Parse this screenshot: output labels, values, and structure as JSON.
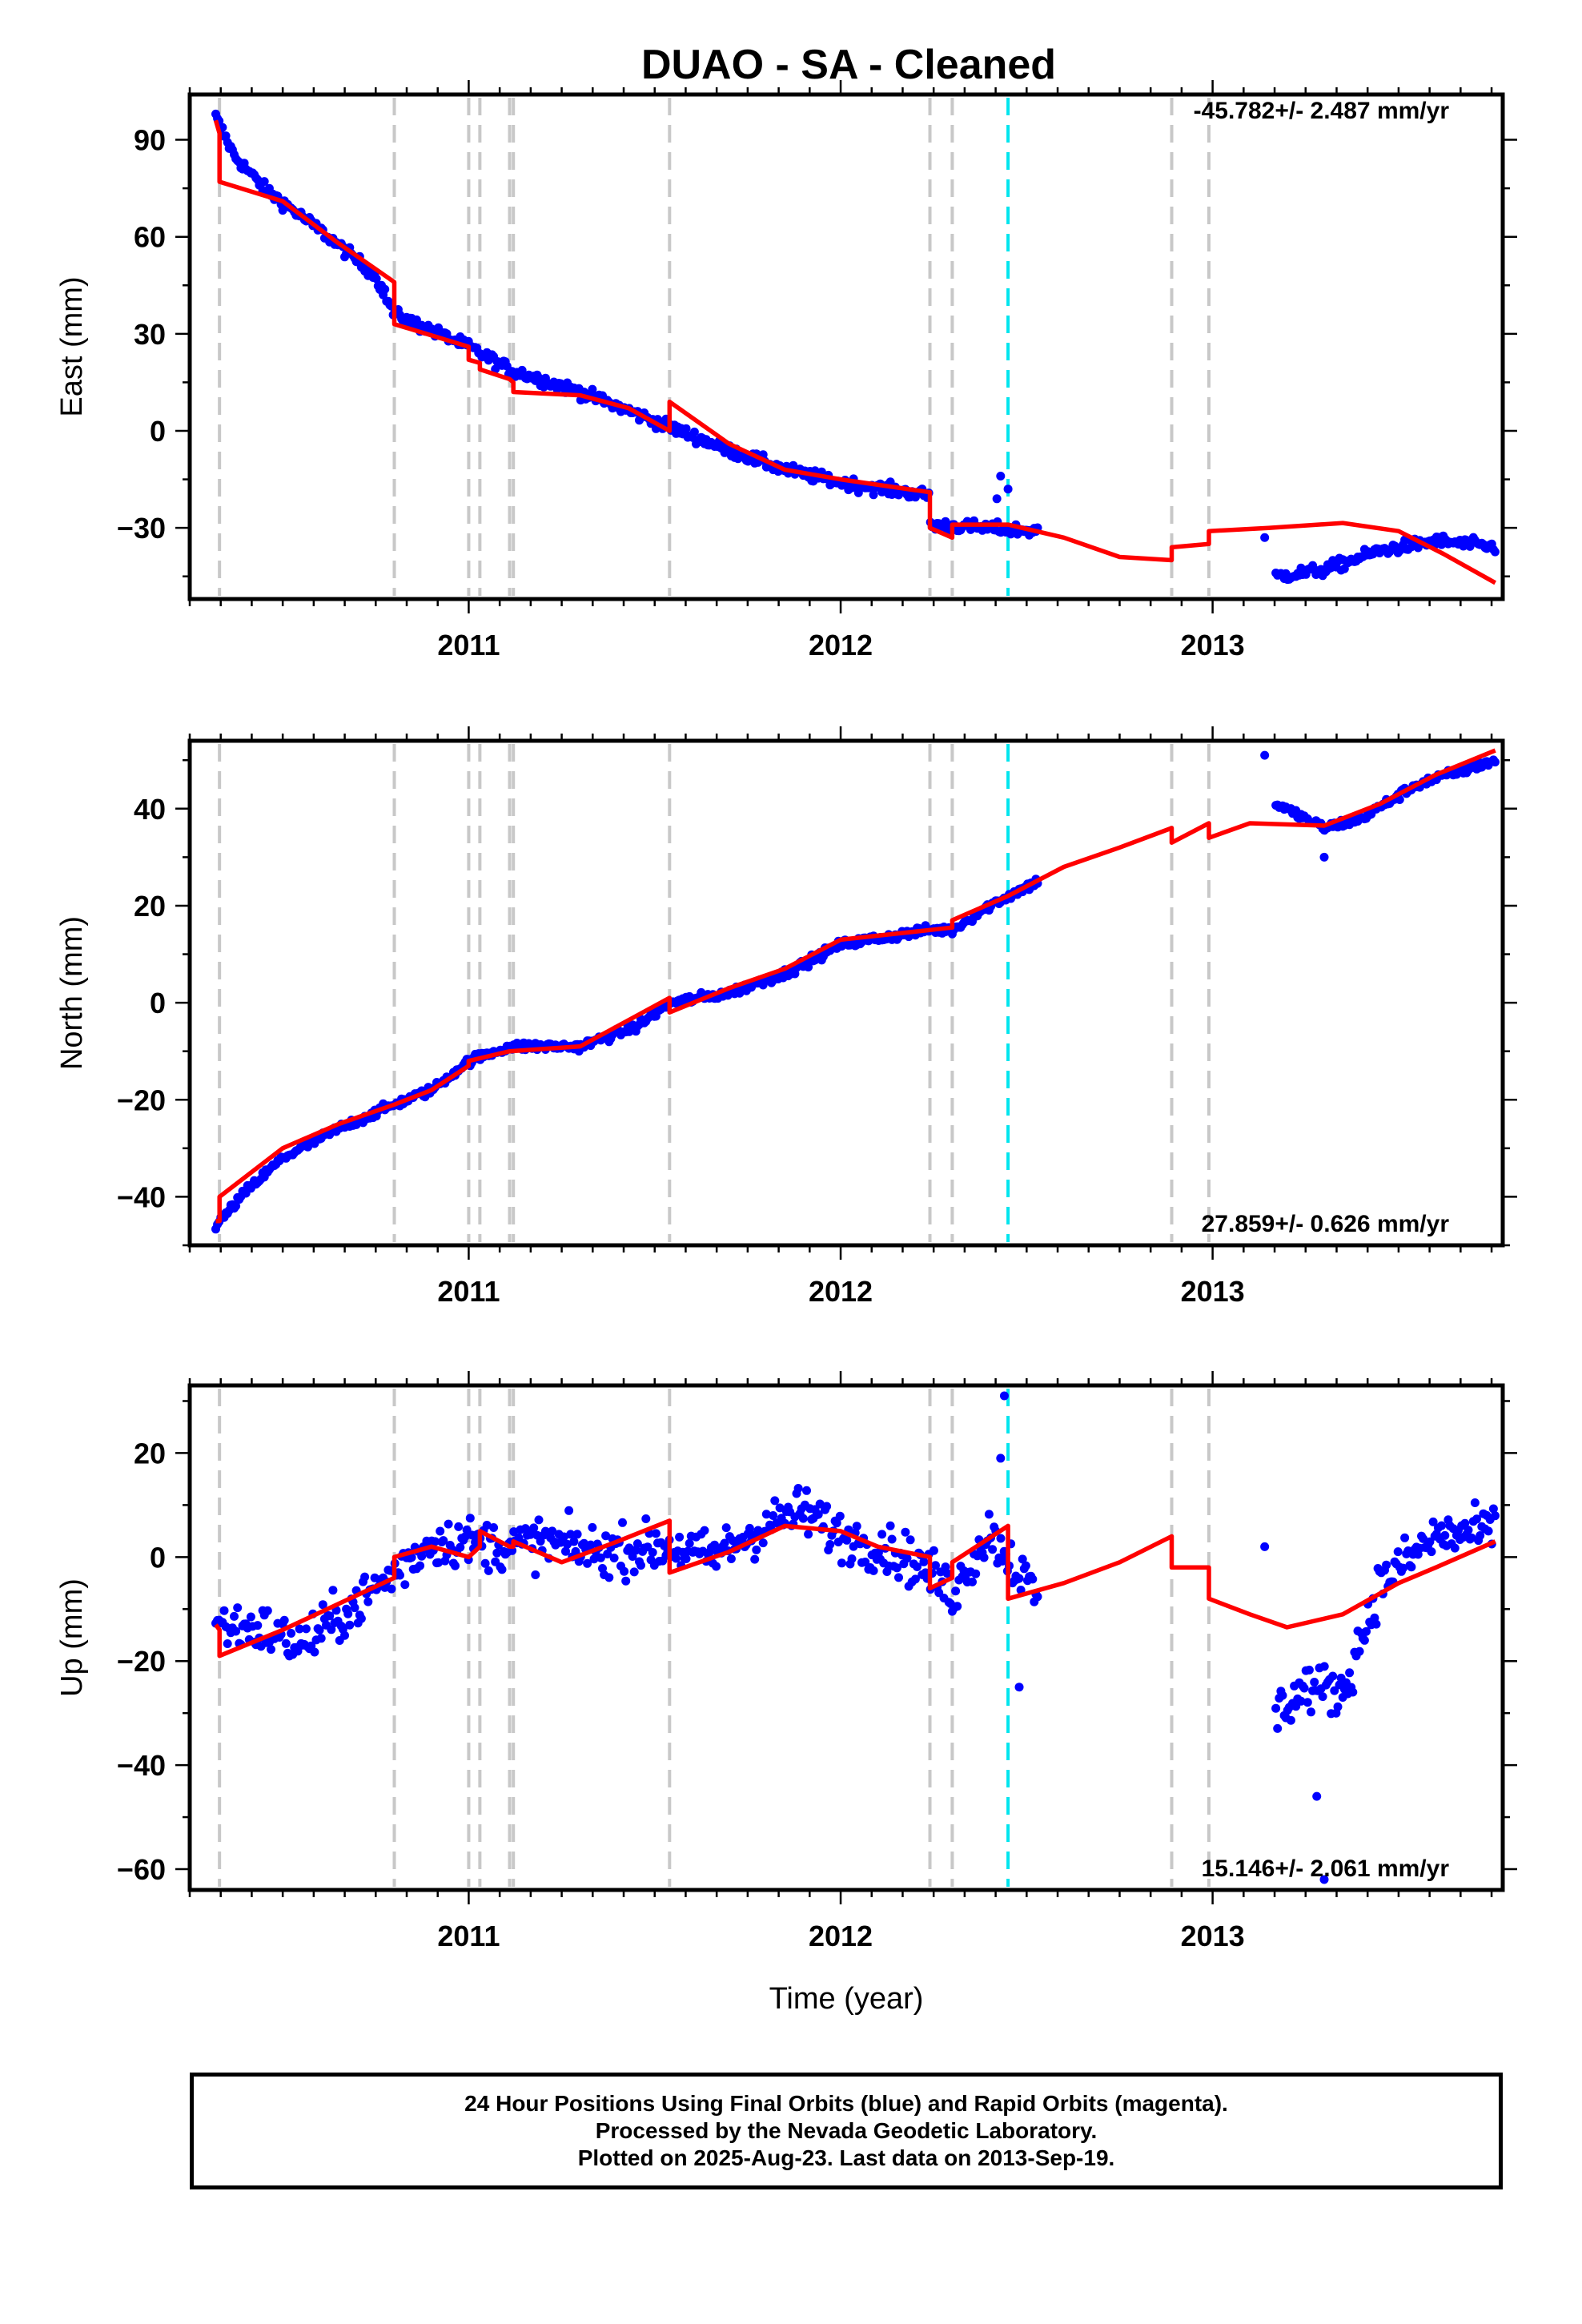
{
  "title": "DUAO  - SA - Cleaned",
  "footer": {
    "line1": "24 Hour Positions Using Final Orbits (blue) and Rapid Orbits (magenta).",
    "line2": "Processed by the Nevada Geodetic Laboratory.",
    "line3": "Plotted on 2025-Aug-23. Last data on 2013-Sep-19."
  },
  "colors": {
    "data": "#0000ff",
    "model": "#ff0000",
    "offset": "#c8c8c8",
    "equipment": "#00e5ee"
  },
  "chart_data": [
    {
      "type": "scatter",
      "ylabel": "East (mm)",
      "xlabel": "",
      "rate_text": "-45.782+/- 2.487 mm/yr",
      "xlim": [
        2010.25,
        2013.78
      ],
      "ylim": [
        -52,
        104
      ],
      "xticks": [
        2011,
        2012,
        2013
      ],
      "xtick_labels": [
        "2011",
        "2012",
        "2013"
      ],
      "yticks": [
        -30,
        0,
        30,
        60,
        90
      ],
      "ytick_labels": [
        "−30",
        "0",
        "30",
        "60",
        "90"
      ],
      "offsets": [
        2010.33,
        2010.8,
        2011.0,
        2011.03,
        2011.11,
        2011.12,
        2011.54,
        2012.24,
        2012.3,
        2012.89,
        2012.99
      ],
      "equipment_change": [
        2012.45
      ],
      "data_ranges": [
        [
          2010.32,
          2012.3
        ],
        [
          2012.3,
          2012.53
        ],
        [
          2013.17,
          2013.76
        ]
      ],
      "scatter_noise": 1.8,
      "outliers": [
        [
          2012.43,
          -14
        ],
        [
          2012.42,
          -21
        ],
        [
          2012.45,
          -18
        ],
        [
          2013.14,
          -33
        ]
      ],
      "model": [
        [
          2010.32,
          96
        ],
        [
          2010.33,
          92
        ],
        [
          2010.33,
          77
        ],
        [
          2010.5,
          71
        ],
        [
          2010.65,
          58
        ],
        [
          2010.8,
          46
        ],
        [
          2010.8,
          33
        ],
        [
          2011.0,
          26
        ],
        [
          2011.0,
          22
        ],
        [
          2011.03,
          21
        ],
        [
          2011.03,
          19
        ],
        [
          2011.11,
          16
        ],
        [
          2011.12,
          15
        ],
        [
          2011.12,
          12
        ],
        [
          2011.3,
          11
        ],
        [
          2011.43,
          7
        ],
        [
          2011.54,
          0
        ],
        [
          2011.54,
          9
        ],
        [
          2011.7,
          -4
        ],
        [
          2011.85,
          -12
        ],
        [
          2012.0,
          -15
        ],
        [
          2012.24,
          -19
        ],
        [
          2012.24,
          -30
        ],
        [
          2012.3,
          -33
        ],
        [
          2012.3,
          -29
        ],
        [
          2012.45,
          -29
        ],
        [
          2012.6,
          -33
        ],
        [
          2012.75,
          -39
        ],
        [
          2012.89,
          -40
        ],
        [
          2012.89,
          -36
        ],
        [
          2012.99,
          -35
        ],
        [
          2012.99,
          -31
        ],
        [
          2013.15,
          -30
        ],
        [
          2013.35,
          -28.5
        ],
        [
          2013.5,
          -31
        ],
        [
          2013.62,
          -38
        ],
        [
          2013.76,
          -47
        ]
      ],
      "data_trend": [
        [
          2010.32,
          97
        ],
        [
          2010.37,
          85
        ],
        [
          2010.45,
          75
        ],
        [
          2010.6,
          62
        ],
        [
          2010.75,
          48
        ],
        [
          2010.8,
          36
        ],
        [
          2011.0,
          26
        ],
        [
          2011.11,
          19
        ],
        [
          2011.3,
          12
        ],
        [
          2011.5,
          3
        ],
        [
          2011.7,
          -6
        ],
        [
          2011.85,
          -12
        ],
        [
          2012.0,
          -16
        ],
        [
          2012.24,
          -20
        ],
        [
          2012.24,
          -29
        ],
        [
          2012.53,
          -31
        ],
        [
          2013.17,
          -45
        ],
        [
          2013.3,
          -43
        ],
        [
          2013.45,
          -37
        ],
        [
          2013.6,
          -34
        ],
        [
          2013.76,
          -36
        ]
      ]
    },
    {
      "type": "scatter",
      "ylabel": "North (mm)",
      "xlabel": "",
      "rate_text": "27.859+/- 0.626 mm/yr",
      "xlim": [
        2010.25,
        2013.78
      ],
      "ylim": [
        -50,
        54
      ],
      "xticks": [
        2011,
        2012,
        2013
      ],
      "xtick_labels": [
        "2011",
        "2012",
        "2013"
      ],
      "yticks": [
        -40,
        -20,
        0,
        20,
        40
      ],
      "ytick_labels": [
        "−40",
        "−20",
        "0",
        "20",
        "40"
      ],
      "offsets": [
        2010.33,
        2010.8,
        2011.0,
        2011.03,
        2011.11,
        2011.12,
        2011.54,
        2012.24,
        2012.3,
        2012.89,
        2012.99
      ],
      "equipment_change": [
        2012.45
      ],
      "data_ranges": [
        [
          2010.32,
          2012.3
        ],
        [
          2012.3,
          2012.53
        ],
        [
          2013.17,
          2013.76
        ]
      ],
      "scatter_noise": 0.9,
      "outliers": [
        [
          2013.14,
          51
        ],
        [
          2013.3,
          30
        ]
      ],
      "model": [
        [
          2010.32,
          -45
        ],
        [
          2010.33,
          -45
        ],
        [
          2010.33,
          -40
        ],
        [
          2010.5,
          -30
        ],
        [
          2010.65,
          -25
        ],
        [
          2010.8,
          -21
        ],
        [
          2010.9,
          -18
        ],
        [
          2011.0,
          -13
        ],
        [
          2011.0,
          -12
        ],
        [
          2011.11,
          -10
        ],
        [
          2011.3,
          -9
        ],
        [
          2011.54,
          1
        ],
        [
          2011.54,
          -2
        ],
        [
          2011.7,
          3
        ],
        [
          2011.85,
          7
        ],
        [
          2012.0,
          13
        ],
        [
          2012.24,
          15
        ],
        [
          2012.3,
          15.5
        ],
        [
          2012.3,
          17
        ],
        [
          2012.45,
          22
        ],
        [
          2012.6,
          28
        ],
        [
          2012.75,
          32
        ],
        [
          2012.89,
          36
        ],
        [
          2012.89,
          33
        ],
        [
          2012.99,
          37
        ],
        [
          2012.99,
          34
        ],
        [
          2013.1,
          37
        ],
        [
          2013.3,
          36.5
        ],
        [
          2013.45,
          41
        ],
        [
          2013.6,
          47
        ],
        [
          2013.76,
          52
        ]
      ],
      "data_trend": [
        [
          2010.32,
          -46
        ],
        [
          2010.4,
          -39
        ],
        [
          2010.5,
          -32
        ],
        [
          2010.65,
          -26
        ],
        [
          2010.8,
          -21
        ],
        [
          2010.9,
          -18
        ],
        [
          2011.0,
          -12
        ],
        [
          2011.11,
          -9
        ],
        [
          2011.3,
          -9
        ],
        [
          2011.45,
          -5
        ],
        [
          2011.54,
          0
        ],
        [
          2011.7,
          2
        ],
        [
          2011.85,
          6
        ],
        [
          2012.0,
          12
        ],
        [
          2012.24,
          15
        ],
        [
          2012.3,
          15
        ],
        [
          2012.4,
          20
        ],
        [
          2012.53,
          25
        ],
        [
          2013.17,
          41
        ],
        [
          2013.3,
          36
        ],
        [
          2013.4,
          38
        ],
        [
          2013.55,
          45
        ],
        [
          2013.76,
          50
        ]
      ]
    },
    {
      "type": "scatter",
      "ylabel": "Up (mm)",
      "xlabel": "Time (year)",
      "rate_text": "15.146+/- 2.061 mm/yr",
      "xlim": [
        2010.25,
        2013.78
      ],
      "ylim": [
        -64,
        33
      ],
      "xticks": [
        2011,
        2012,
        2013
      ],
      "xtick_labels": [
        "2011",
        "2012",
        "2013"
      ],
      "yticks": [
        -60,
        -40,
        -20,
        0,
        20
      ],
      "ytick_labels": [
        "−60",
        "−40",
        "−20",
        "0",
        "20"
      ],
      "offsets": [
        2010.33,
        2010.8,
        2011.0,
        2011.03,
        2011.11,
        2011.12,
        2011.54,
        2012.24,
        2012.3,
        2012.89,
        2012.99
      ],
      "equipment_change": [
        2012.45
      ],
      "data_ranges": [
        [
          2010.32,
          2012.3
        ],
        [
          2012.3,
          2012.53
        ],
        [
          2013.17,
          2013.76
        ]
      ],
      "scatter_noise": 4.5,
      "outliers": [
        [
          2012.44,
          31
        ],
        [
          2012.43,
          19
        ],
        [
          2013.14,
          2
        ],
        [
          2013.3,
          -62
        ],
        [
          2013.28,
          -46
        ],
        [
          2012.48,
          -25
        ]
      ],
      "model": [
        [
          2010.32,
          -13
        ],
        [
          2010.33,
          -14
        ],
        [
          2010.33,
          -19
        ],
        [
          2010.5,
          -14
        ],
        [
          2010.65,
          -9
        ],
        [
          2010.8,
          -4
        ],
        [
          2010.8,
          0
        ],
        [
          2010.9,
          2
        ],
        [
          2011.0,
          0
        ],
        [
          2011.03,
          2
        ],
        [
          2011.03,
          5
        ],
        [
          2011.11,
          2
        ],
        [
          2011.12,
          2
        ],
        [
          2011.12,
          3
        ],
        [
          2011.25,
          -1
        ],
        [
          2011.4,
          3
        ],
        [
          2011.54,
          7
        ],
        [
          2011.54,
          -3
        ],
        [
          2011.7,
          1
        ],
        [
          2011.85,
          6
        ],
        [
          2012.0,
          5
        ],
        [
          2012.1,
          2
        ],
        [
          2012.24,
          0
        ],
        [
          2012.24,
          -6
        ],
        [
          2012.3,
          -4
        ],
        [
          2012.3,
          -1
        ],
        [
          2012.45,
          6
        ],
        [
          2012.45,
          -8
        ],
        [
          2012.6,
          -5
        ],
        [
          2012.75,
          -1
        ],
        [
          2012.89,
          4
        ],
        [
          2012.89,
          -2
        ],
        [
          2012.99,
          -2
        ],
        [
          2012.99,
          -8
        ],
        [
          2013.1,
          -11
        ],
        [
          2013.2,
          -13.5
        ],
        [
          2013.35,
          -11
        ],
        [
          2013.5,
          -5
        ],
        [
          2013.6,
          -2
        ],
        [
          2013.76,
          3
        ]
      ],
      "data_trend": [
        [
          2010.32,
          -13
        ],
        [
          2010.45,
          -14
        ],
        [
          2010.55,
          -17
        ],
        [
          2010.7,
          -9
        ],
        [
          2010.8,
          -3
        ],
        [
          2010.9,
          3
        ],
        [
          2011.0,
          3
        ],
        [
          2011.11,
          2
        ],
        [
          2011.2,
          3
        ],
        [
          2011.35,
          1
        ],
        [
          2011.54,
          2
        ],
        [
          2011.65,
          0
        ],
        [
          2011.8,
          6
        ],
        [
          2011.9,
          9
        ],
        [
          2012.0,
          4
        ],
        [
          2012.15,
          1
        ],
        [
          2012.24,
          -3
        ],
        [
          2012.3,
          -7
        ],
        [
          2012.4,
          5
        ],
        [
          2012.53,
          -8
        ],
        [
          2013.17,
          -30
        ],
        [
          2013.25,
          -25
        ],
        [
          2013.35,
          -26
        ],
        [
          2013.45,
          -5
        ],
        [
          2013.6,
          4
        ],
        [
          2013.76,
          5
        ]
      ]
    }
  ]
}
